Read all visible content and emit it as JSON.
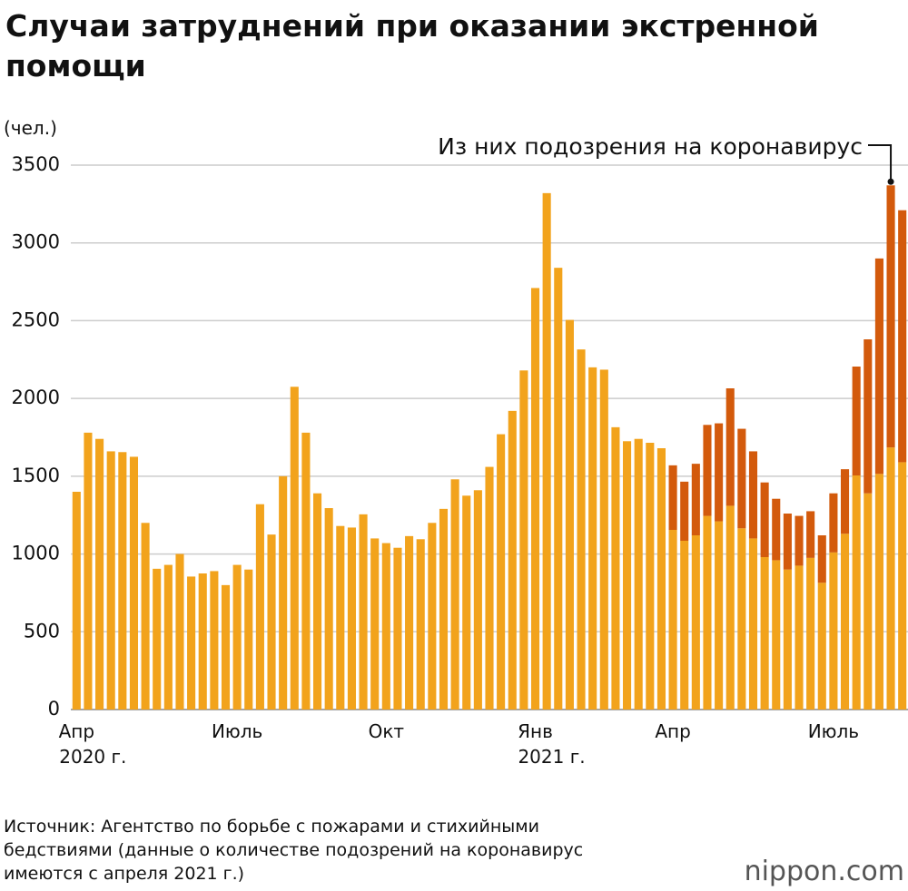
{
  "chart_data": {
    "type": "bar",
    "stacked": true,
    "title": [
      "Случаи затруднений при оказании экстренной",
      "помощи"
    ],
    "y_unit": "(чел.)",
    "annotation": "Из них подозрения на коронавирус",
    "source": [
      "Источник: Агентство по борьбе с пожарами и стихийными",
      "бедствиями (данные о количестве подозрений на коронавирус",
      "имеются с апреля 2021 г.)"
    ],
    "logo": "nippon.com",
    "categories": [
      "Апр",
      null,
      null,
      null,
      null,
      null,
      null,
      null,
      null,
      null,
      null,
      null,
      null,
      null,
      "Июль",
      null,
      null,
      null,
      null,
      null,
      null,
      null,
      null,
      null,
      null,
      null,
      null,
      "Окт",
      null,
      null,
      null,
      null,
      null,
      null,
      null,
      null,
      null,
      null,
      null,
      null,
      "Янв",
      null,
      null,
      null,
      null,
      null,
      null,
      null,
      null,
      null,
      null,
      null,
      "Апр",
      null,
      null,
      null,
      null,
      null,
      null,
      null,
      null,
      null,
      null,
      null,
      null,
      null,
      "Июль",
      null,
      null,
      null,
      null,
      null,
      null
    ],
    "years": [
      "2020 г.",
      null,
      null,
      null,
      null,
      null,
      null,
      null,
      null,
      null,
      null,
      null,
      null,
      null,
      null,
      null,
      null,
      null,
      null,
      null,
      null,
      null,
      null,
      null,
      null,
      null,
      null,
      null,
      null,
      null,
      null,
      null,
      null,
      null,
      null,
      null,
      null,
      null,
      null,
      null,
      "2021 г.",
      null,
      null,
      null,
      null,
      null,
      null,
      null,
      null,
      null,
      null,
      null,
      null,
      null,
      null,
      null,
      null,
      null,
      null,
      null,
      null,
      null,
      null,
      null,
      null,
      null,
      null,
      null,
      null,
      null,
      null,
      null,
      null
    ],
    "series": [
      {
        "color": "#f2a31c",
        "values": [
          1400,
          1780,
          1740,
          1660,
          1655,
          1625,
          1200,
          905,
          930,
          1000,
          855,
          875,
          890,
          800,
          930,
          900,
          1320,
          1125,
          1500,
          2075,
          1780,
          1390,
          1295,
          1180,
          1170,
          1255,
          1100,
          1070,
          1040,
          1115,
          1095,
          1200,
          1290,
          1480,
          1375,
          1410,
          1560,
          1770,
          1920,
          2180,
          2710,
          3320,
          2840,
          2505,
          2315,
          2200,
          2185,
          1815,
          1725,
          1740,
          1715,
          1680,
          1155,
          1085,
          1120,
          1245,
          1210,
          1310,
          1165,
          1100,
          980,
          960,
          900,
          925,
          975,
          815,
          1010,
          1130,
          1505,
          1390,
          1515,
          1685,
          1590
        ]
      },
      {
        "name": "Из них подозрения на коронавирус",
        "color": "#d35a0c",
        "values": [
          null,
          null,
          null,
          null,
          null,
          null,
          null,
          null,
          null,
          null,
          null,
          null,
          null,
          null,
          null,
          null,
          null,
          null,
          null,
          null,
          null,
          null,
          null,
          null,
          null,
          null,
          null,
          null,
          null,
          null,
          null,
          null,
          null,
          null,
          null,
          null,
          null,
          null,
          null,
          null,
          null,
          null,
          null,
          null,
          null,
          null,
          null,
          null,
          null,
          null,
          null,
          null,
          415,
          380,
          460,
          585,
          630,
          755,
          640,
          560,
          480,
          395,
          360,
          320,
          300,
          305,
          380,
          415,
          700,
          990,
          1385,
          1685,
          1620
        ]
      }
    ],
    "ylim": [
      0,
      3500
    ],
    "yticks": [
      0,
      500,
      1000,
      1500,
      2000,
      2500,
      3000,
      3500
    ],
    "grid": true
  }
}
